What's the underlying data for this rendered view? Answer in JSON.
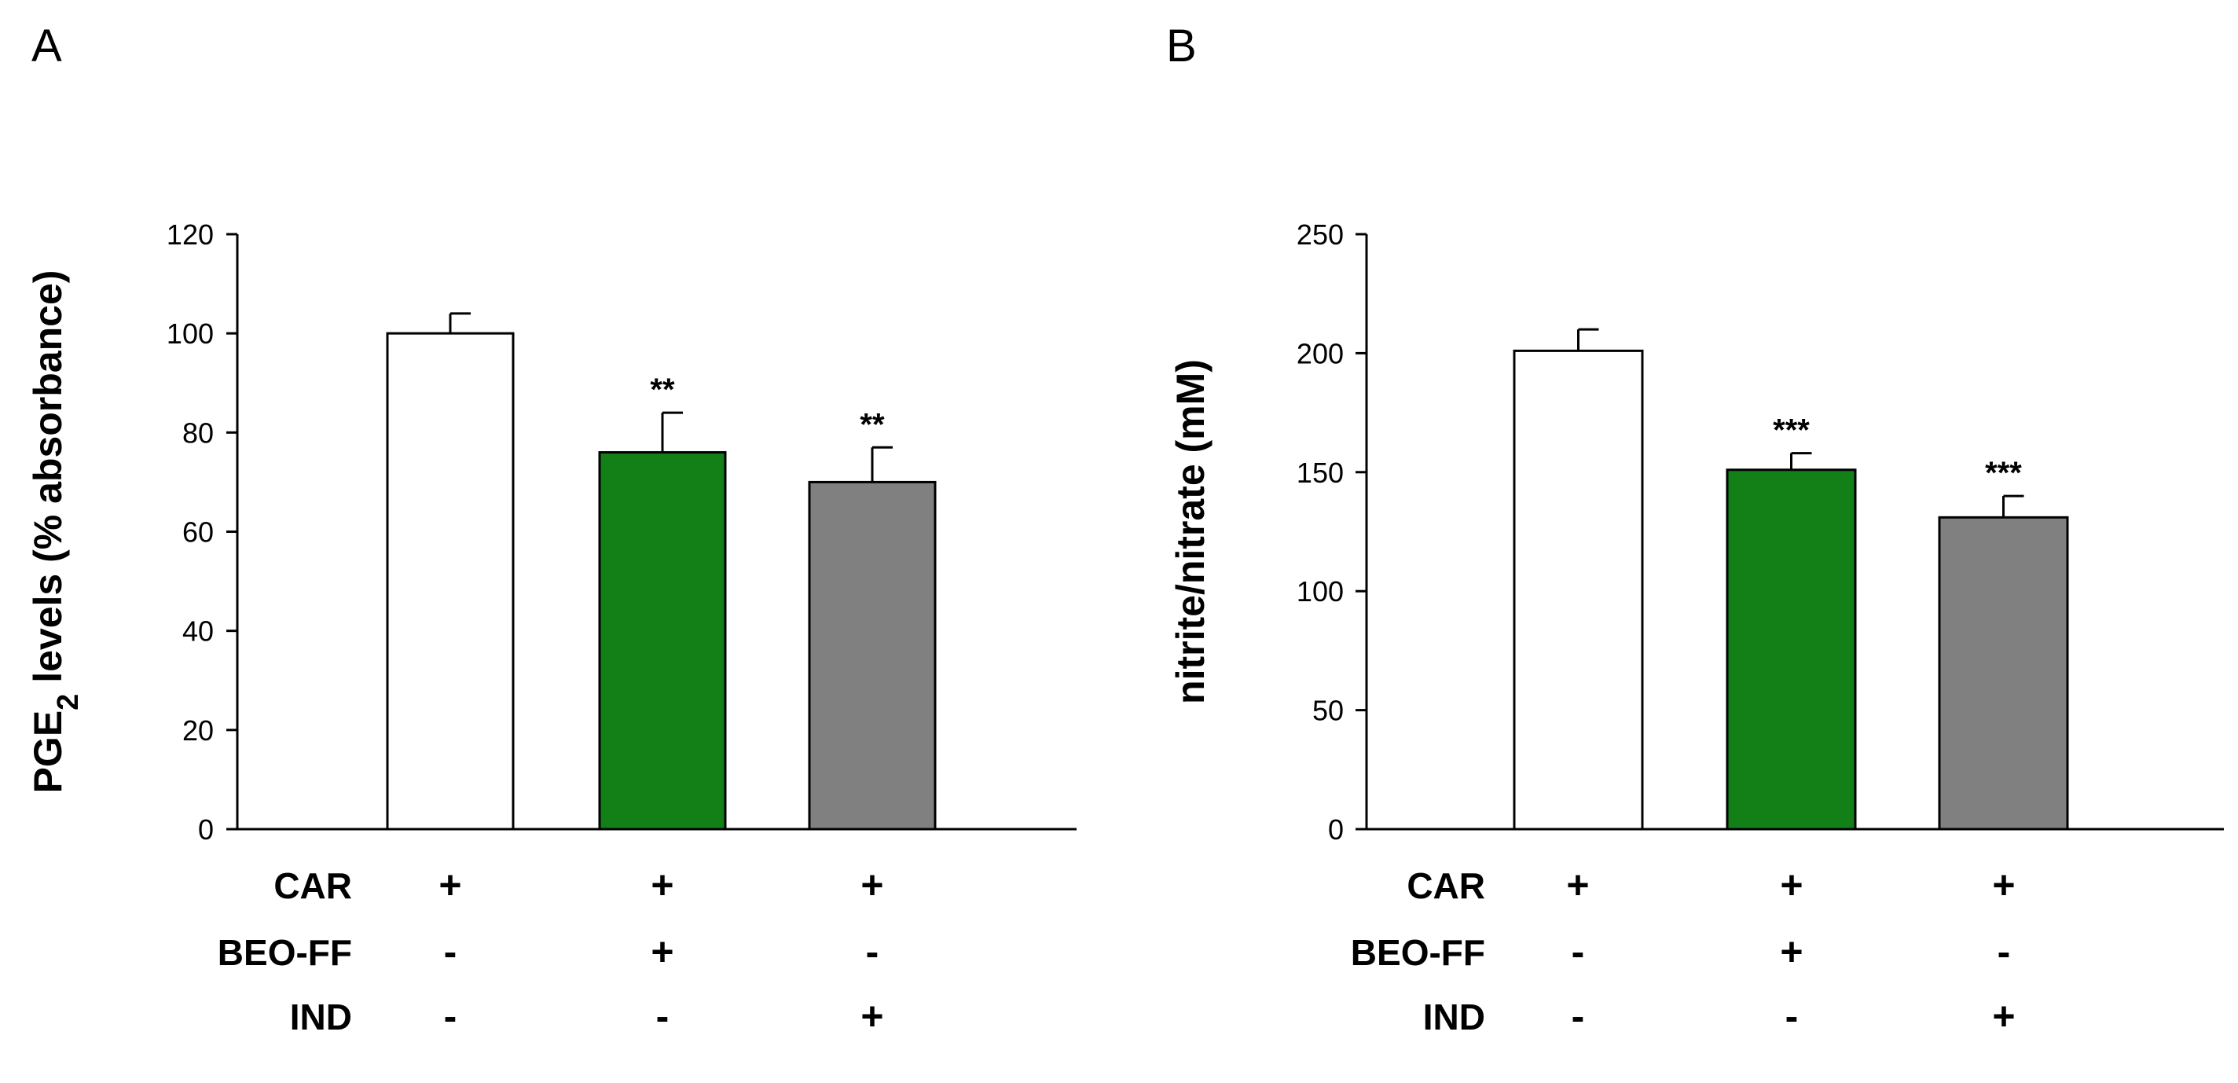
{
  "chart_data": [
    {
      "type": "bar",
      "panel": "A",
      "title": "",
      "xlabel": "",
      "ylabel_parts": [
        "PGE",
        "2",
        " levels (% absorbance)"
      ],
      "ylim": [
        0,
        120
      ],
      "yticks": [
        0,
        20,
        40,
        60,
        80,
        100,
        120
      ],
      "categories": [
        "CAR",
        "CAR + BEO-FF",
        "CAR + IND"
      ],
      "values": [
        100,
        76,
        70
      ],
      "errors": [
        4,
        8,
        7
      ],
      "colors": [
        "#ffffff",
        "#137f17",
        "#808080"
      ],
      "significance": [
        "",
        "**",
        "**"
      ],
      "treatment_rows": [
        {
          "label": "CAR",
          "signs": [
            "+",
            "+",
            "+"
          ]
        },
        {
          "label": "BEO-FF",
          "signs": [
            "-",
            "+",
            "-"
          ]
        },
        {
          "label": "IND",
          "signs": [
            "-",
            "-",
            "+"
          ]
        }
      ]
    },
    {
      "type": "bar",
      "panel": "B",
      "title": "",
      "xlabel": "",
      "ylabel_parts": [
        "nitrite/nitrate (mM)"
      ],
      "ylim": [
        0,
        250
      ],
      "yticks": [
        0,
        50,
        100,
        150,
        200,
        250
      ],
      "categories": [
        "CAR",
        "CAR + BEO-FF",
        "CAR + IND"
      ],
      "values": [
        201,
        151,
        131
      ],
      "errors": [
        9,
        7,
        9
      ],
      "colors": [
        "#ffffff",
        "#137f17",
        "#808080"
      ],
      "significance": [
        "",
        "***",
        "***"
      ],
      "treatment_rows": [
        {
          "label": "CAR",
          "signs": [
            "+",
            "+",
            "+"
          ]
        },
        {
          "label": "BEO-FF",
          "signs": [
            "-",
            "+",
            "-"
          ]
        },
        {
          "label": "IND",
          "signs": [
            "-",
            "-",
            "+"
          ]
        }
      ]
    }
  ]
}
